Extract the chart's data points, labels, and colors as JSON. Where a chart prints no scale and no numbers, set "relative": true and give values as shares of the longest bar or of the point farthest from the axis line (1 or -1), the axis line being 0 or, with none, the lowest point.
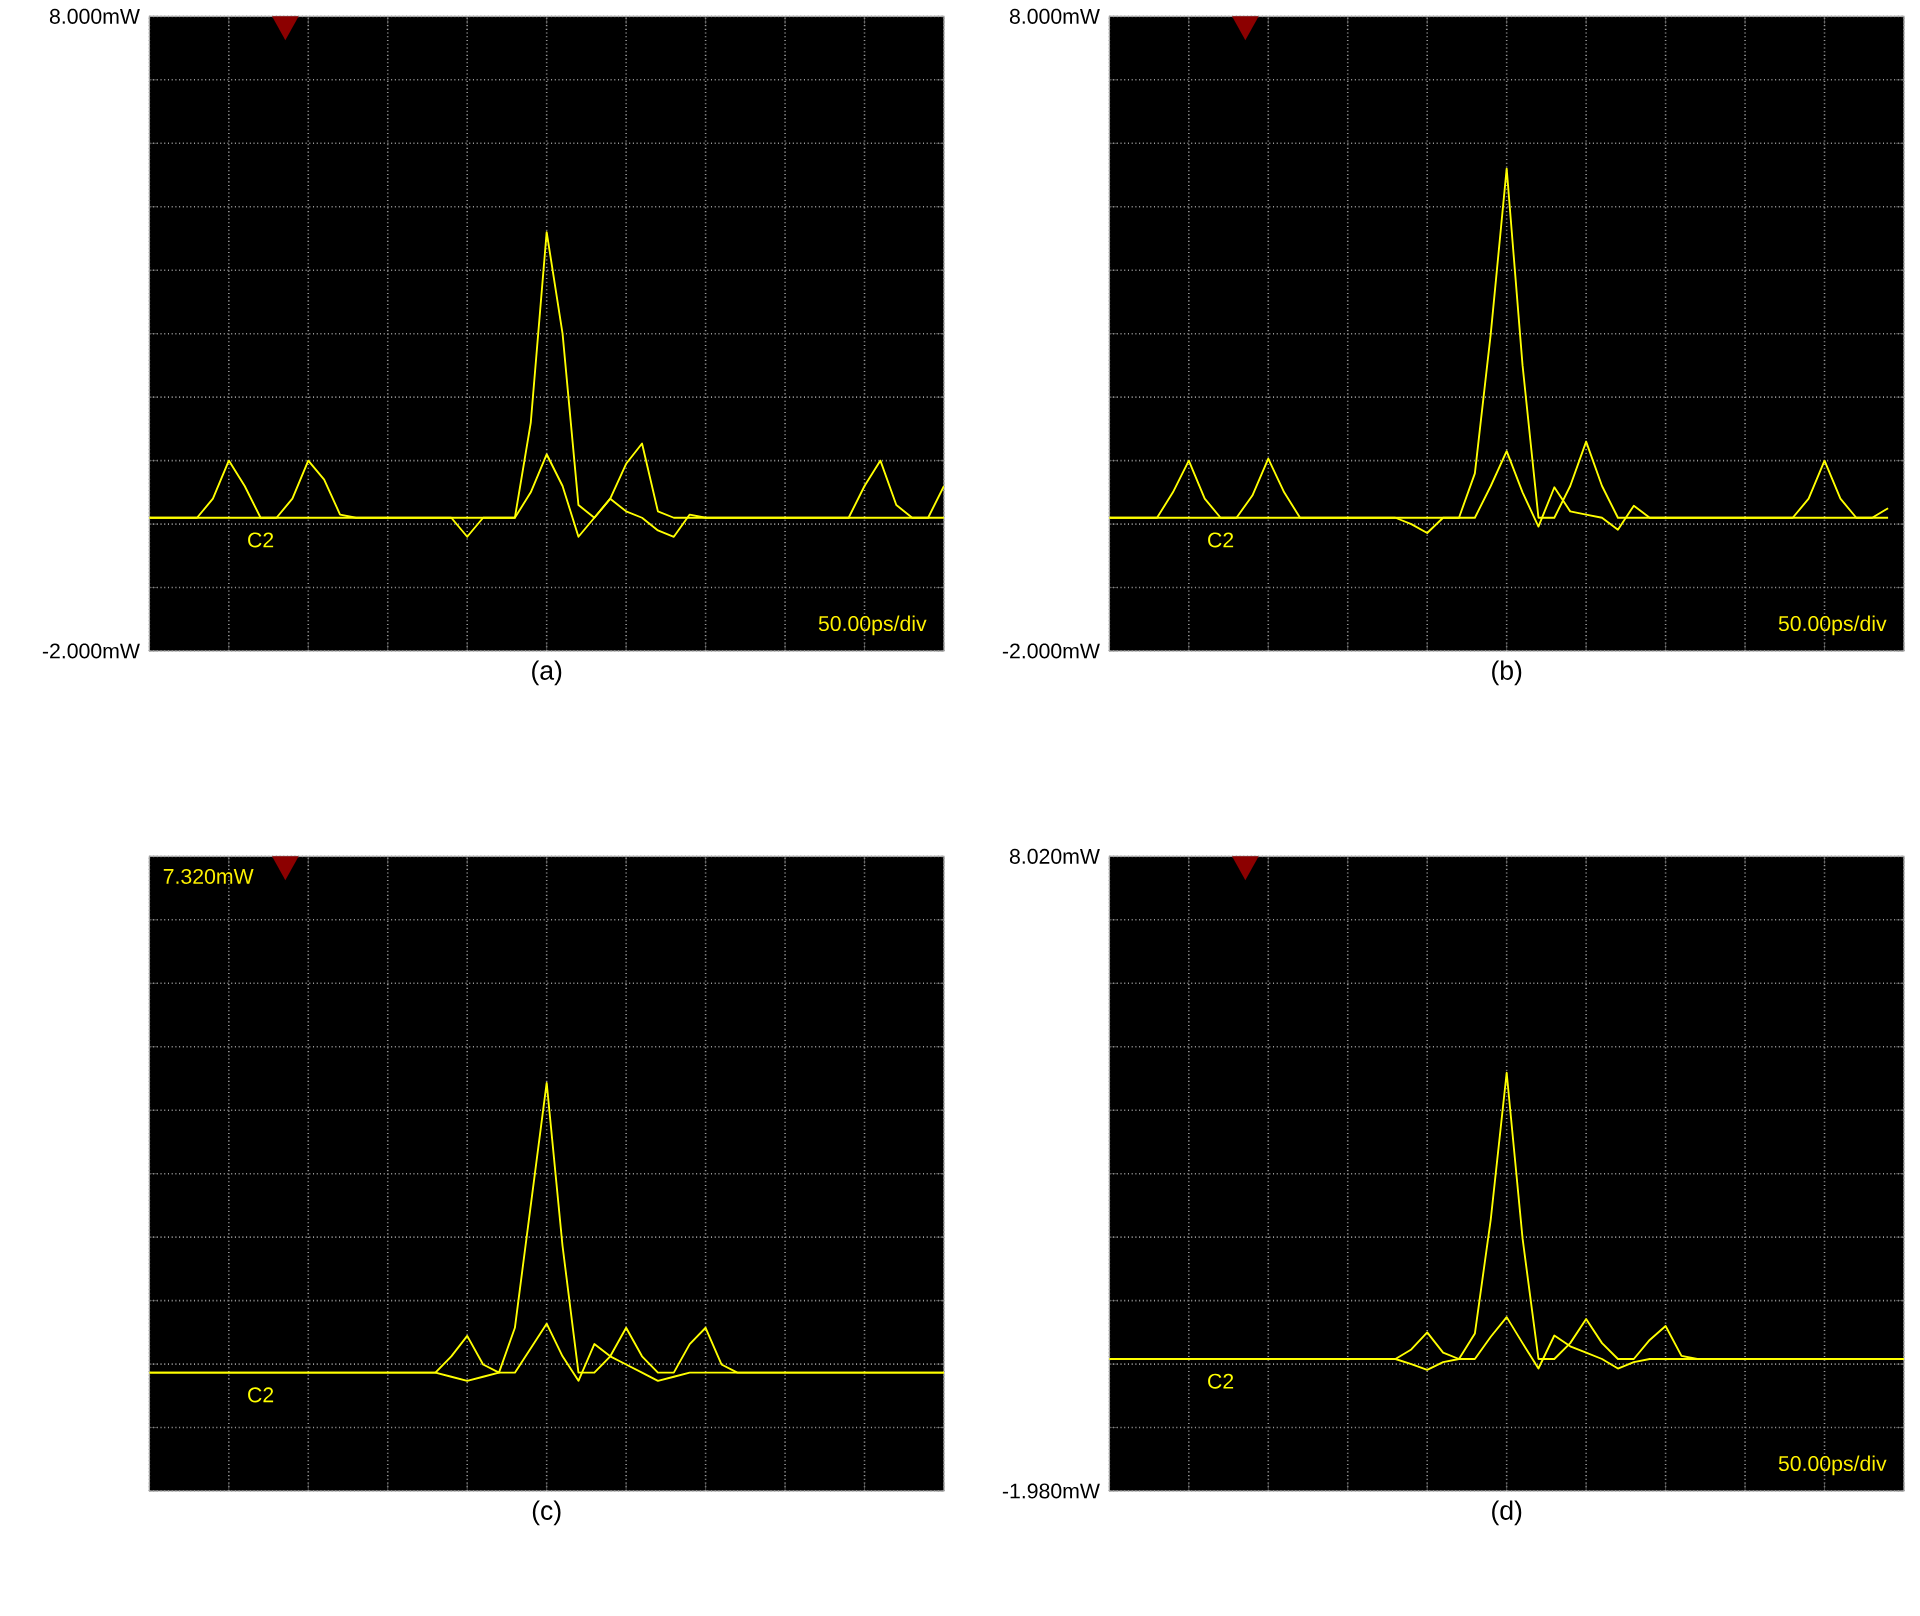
{
  "chart_data": [
    {
      "type": "line",
      "title": "(a)",
      "categories": [
        null,
        null,
        null,
        null,
        null,
        null,
        null,
        null,
        null,
        null,
        null,
        null,
        null,
        null,
        null,
        null,
        null,
        null,
        null,
        null,
        null,
        null,
        null,
        null,
        null,
        null,
        null,
        null,
        null,
        null,
        null,
        null,
        null,
        null,
        null,
        null,
        null,
        null,
        null,
        null,
        null,
        null,
        null,
        null,
        null,
        null,
        null,
        null,
        null,
        null,
        null
      ],
      "ylim": [
        -2,
        8
      ],
      "yticks": [
        {
          "value": -2,
          "label": "-2.000mW"
        },
        {
          "value": -1,
          "label": null
        },
        {
          "value": 0,
          "label": null
        },
        {
          "value": 1,
          "label": null
        },
        {
          "value": 2,
          "label": null
        },
        {
          "value": 3,
          "label": null
        },
        {
          "value": 4,
          "label": null
        },
        {
          "value": 5,
          "label": null
        },
        {
          "value": 6,
          "label": null
        },
        {
          "value": 7,
          "label": null
        },
        {
          "value": 8,
          "label": "8.000mW"
        }
      ],
      "tick_labels": "y",
      "grid": true,
      "series": [
        {
          "name": "C2",
          "color": "#ffff00",
          "values": [
            0.1,
            0.1,
            0.1,
            0.1,
            0.4,
            1.0,
            0.6,
            0.1,
            0.1,
            0.4,
            1.0,
            0.7,
            0.15,
            0.1,
            0.1,
            0.1,
            0.1,
            0.1,
            0.1,
            0.1,
            0.1,
            0.1,
            0.1,
            0.1,
            1.6,
            4.6,
            3.0,
            0.3,
            0.1,
            0.4,
            0.95,
            1.27,
            0.2,
            0.1,
            0.1,
            0.1,
            0.1,
            0.1,
            0.1,
            0.1,
            0.1,
            0.1,
            0.1,
            0.1,
            0.1,
            0.6,
            1.0,
            0.3,
            0.1,
            0.1,
            0.6
          ]
        },
        {
          "color": "#ffff00",
          "values": [
            0.1,
            0.1,
            0.1,
            0.1,
            0.1,
            0.1,
            0.1,
            0.1,
            0.1,
            0.1,
            0.1,
            0.1,
            0.1,
            0.1,
            0.1,
            0.1,
            0.1,
            0.1,
            0.1,
            0.1,
            -0.2,
            0.1,
            0.1,
            0.1,
            0.5,
            1.1,
            0.6,
            -0.2,
            0.1,
            0.4,
            0.2,
            0.1,
            -0.1,
            -0.2,
            0.15,
            0.1,
            0.1,
            0.1,
            0.1,
            0.1,
            0.1,
            0.1,
            0.1,
            0.1,
            0.1,
            0.1,
            0.1,
            0.1,
            0.1,
            0.1,
            0.1
          ]
        }
      ],
      "annotations": [
        "50.00ps/div"
      ]
    },
    {
      "type": "line",
      "title": "(b)",
      "categories": [
        null,
        null,
        null,
        null,
        null,
        null,
        null,
        null,
        null,
        null,
        null,
        null,
        null,
        null,
        null,
        null,
        null,
        null,
        null,
        null,
        null,
        null,
        null,
        null,
        null,
        null,
        null,
        null,
        null,
        null,
        null,
        null,
        null,
        null,
        null,
        null,
        null,
        null,
        null,
        null,
        null,
        null,
        null,
        null,
        null,
        null,
        null,
        null,
        null,
        null,
        null
      ],
      "ylim": [
        -2,
        8
      ],
      "yticks": [
        {
          "value": -2,
          "label": "-2.000mW"
        },
        {
          "value": -1,
          "label": null
        },
        {
          "value": 0,
          "label": null
        },
        {
          "value": 1,
          "label": null
        },
        {
          "value": 2,
          "label": null
        },
        {
          "value": 3,
          "label": null
        },
        {
          "value": 4,
          "label": null
        },
        {
          "value": 5,
          "label": null
        },
        {
          "value": 6,
          "label": null
        },
        {
          "value": 7,
          "label": null
        },
        {
          "value": 8,
          "label": "8.000mW"
        }
      ],
      "tick_labels": "y",
      "grid": true,
      "series": [
        {
          "name": "C2",
          "color": "#ffff00",
          "values": [
            0.1,
            0.1,
            0.1,
            0.1,
            0.5,
            1.0,
            0.4,
            0.1,
            0.1,
            0.45,
            1.03,
            0.5,
            0.1,
            0.1,
            0.1,
            0.1,
            0.1,
            0.1,
            0.1,
            0.1,
            0.1,
            0.1,
            0.1,
            0.8,
            3.0,
            5.6,
            2.5,
            0.1,
            0.1,
            0.6,
            1.3,
            0.6,
            0.1,
            0.1,
            0.1,
            0.1,
            0.1,
            0.1,
            0.1,
            0.1,
            0.1,
            0.1,
            0.1,
            0.1,
            0.4,
            1.0,
            0.4,
            0.1,
            0.1,
            0.25,
            null
          ]
        },
        {
          "color": "#ffff00",
          "values": [
            0.1,
            0.1,
            0.1,
            0.1,
            0.1,
            0.1,
            0.1,
            0.1,
            0.1,
            0.1,
            0.1,
            0.1,
            0.1,
            0.1,
            0.1,
            0.1,
            0.1,
            0.1,
            0.1,
            0.0,
            -0.14,
            0.1,
            0.1,
            0.1,
            0.6,
            1.15,
            0.5,
            -0.04,
            0.58,
            0.2,
            0.15,
            0.1,
            -0.09,
            0.29,
            0.1,
            0.1,
            0.1,
            0.1,
            0.1,
            0.1,
            0.1,
            0.1,
            0.1,
            0.1,
            0.1,
            0.1,
            0.1,
            0.1,
            0.1,
            0.1,
            null
          ]
        }
      ],
      "annotations": [
        "50.00ps/div"
      ]
    },
    {
      "type": "line",
      "title": "(c)",
      "categories": [
        null,
        null,
        null,
        null,
        null,
        null,
        null,
        null,
        null,
        null,
        null,
        null,
        null,
        null,
        null,
        null,
        null,
        null,
        null,
        null,
        null,
        null,
        null,
        null,
        null,
        null,
        null,
        null,
        null,
        null,
        null,
        null,
        null,
        null,
        null,
        null,
        null,
        null,
        null,
        null,
        null,
        null,
        null,
        null,
        null,
        null,
        null,
        null,
        null,
        null,
        null
      ],
      "relative": true,
      "tick_labels": false,
      "grid": true,
      "series": [
        {
          "name": "C2",
          "color": "#ffff00",
          "values": [
            0.29,
            0.29,
            0.29,
            0.29,
            0.29,
            0.29,
            0.29,
            0.29,
            0.29,
            0.29,
            0.29,
            0.29,
            0.29,
            0.29,
            0.29,
            0.29,
            0.29,
            0.29,
            0.29,
            0.33,
            0.38,
            0.31,
            0.29,
            0.4,
            0.7,
            1.0,
            0.6,
            0.29,
            0.29,
            0.33,
            0.4,
            0.33,
            0.29,
            0.29,
            0.36,
            0.4,
            0.31,
            0.29,
            0.29,
            0.29,
            0.29,
            0.29,
            0.29,
            0.29,
            0.29,
            0.29,
            0.29,
            0.29,
            0.29,
            0.29,
            0.29
          ]
        },
        {
          "color": "#ffff00",
          "values": [
            0.29,
            0.29,
            0.29,
            0.29,
            0.29,
            0.29,
            0.29,
            0.29,
            0.29,
            0.29,
            0.29,
            0.29,
            0.29,
            0.29,
            0.29,
            0.29,
            0.29,
            0.29,
            0.29,
            0.28,
            0.27,
            0.28,
            0.29,
            0.29,
            0.35,
            0.41,
            0.33,
            0.27,
            0.36,
            0.33,
            0.31,
            0.29,
            0.27,
            0.28,
            0.29,
            0.29,
            0.29,
            0.29,
            0.29,
            0.29,
            0.29,
            0.29,
            0.29,
            0.29,
            0.29,
            0.29,
            0.29,
            0.29,
            0.29,
            0.29,
            0.29
          ]
        }
      ],
      "annotations": [
        "7.320mW"
      ]
    },
    {
      "type": "line",
      "title": "(d)",
      "categories": [
        null,
        null,
        null,
        null,
        null,
        null,
        null,
        null,
        null,
        null,
        null,
        null,
        null,
        null,
        null,
        null,
        null,
        null,
        null,
        null,
        null,
        null,
        null,
        null,
        null,
        null,
        null,
        null,
        null,
        null,
        null,
        null,
        null,
        null,
        null,
        null,
        null,
        null,
        null,
        null,
        null,
        null,
        null,
        null,
        null,
        null,
        null,
        null,
        null,
        null,
        null
      ],
      "ylim": [
        -1.98,
        8.02
      ],
      "yticks": [
        {
          "value": -1.98,
          "label": "-1.980mW"
        },
        {
          "value": -0.98,
          "label": null
        },
        {
          "value": 0.02,
          "label": null
        },
        {
          "value": 1.02,
          "label": null
        },
        {
          "value": 2.02,
          "label": null
        },
        {
          "value": 3.02,
          "label": null
        },
        {
          "value": 4.02,
          "label": null
        },
        {
          "value": 5.02,
          "label": null
        },
        {
          "value": 6.02,
          "label": null
        },
        {
          "value": 7.02,
          "label": null
        },
        {
          "value": 8.02,
          "label": "8.020mW"
        }
      ],
      "tick_labels": "y",
      "grid": true,
      "series": [
        {
          "name": "C2",
          "color": "#ffff00",
          "values": [
            0.1,
            0.1,
            0.1,
            0.1,
            0.1,
            0.1,
            0.1,
            0.1,
            0.1,
            0.1,
            0.1,
            0.1,
            0.1,
            0.1,
            0.1,
            0.1,
            0.1,
            0.1,
            0.1,
            0.25,
            0.52,
            0.2,
            0.1,
            0.5,
            2.3,
            4.61,
            2.0,
            0.1,
            0.1,
            0.35,
            0.73,
            0.35,
            0.1,
            0.1,
            0.4,
            0.62,
            0.15,
            0.1,
            0.1,
            0.1,
            0.1,
            0.1,
            0.1,
            0.1,
            0.1,
            0.1,
            0.1,
            0.1,
            0.1,
            0.1,
            0.1
          ]
        },
        {
          "color": "#ffff00",
          "values": [
            0.1,
            0.1,
            0.1,
            0.1,
            0.1,
            0.1,
            0.1,
            0.1,
            0.1,
            0.1,
            0.1,
            0.1,
            0.1,
            0.1,
            0.1,
            0.1,
            0.1,
            0.1,
            0.1,
            0.02,
            -0.07,
            0.05,
            0.1,
            0.1,
            0.45,
            0.76,
            0.35,
            -0.05,
            0.47,
            0.3,
            0.2,
            0.1,
            -0.05,
            0.05,
            0.1,
            0.1,
            0.1,
            0.1,
            0.1,
            0.1,
            0.1,
            0.1,
            0.1,
            0.1,
            0.1,
            0.1,
            0.1,
            0.1,
            0.1,
            0.1,
            0.1
          ]
        }
      ],
      "annotations": [
        "50.00ps/div"
      ]
    }
  ]
}
